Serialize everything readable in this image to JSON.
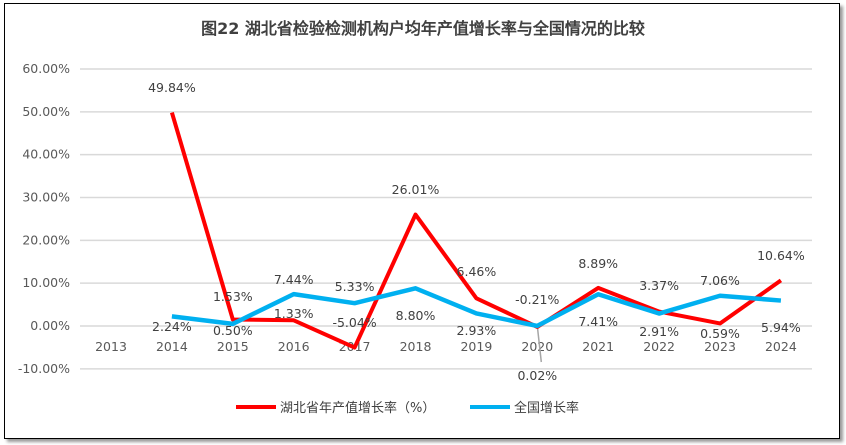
{
  "chart_data": {
    "type": "line",
    "title": "图22  湖北省检验检测机构户均年产值增长率与全国情况的比较",
    "categories": [
      "2013",
      "2014",
      "2015",
      "2016",
      "2017",
      "2018",
      "2019",
      "2020",
      "2021",
      "2022",
      "2023",
      "2024"
    ],
    "y_ticks": [
      "-10.00%",
      "0.00%",
      "10.00%",
      "20.00%",
      "30.00%",
      "40.00%",
      "50.00%",
      "60.00%"
    ],
    "ylim": [
      -10,
      60
    ],
    "grid": true,
    "legend_position": "bottom",
    "series": [
      {
        "name": "湖北省年产值增长率（%）",
        "color": "#FF0000",
        "values": [
          null,
          49.84,
          1.53,
          1.33,
          -5.04,
          26.01,
          6.46,
          -0.21,
          8.89,
          3.37,
          0.59,
          10.64
        ],
        "labels": [
          "",
          "49.84%",
          "1.53%",
          "1.33%",
          "-5.04%",
          "26.01%",
          "6.46%",
          "-0.21%",
          "8.89%",
          "3.37%",
          "0.59%",
          "10.64%"
        ]
      },
      {
        "name": "全国增长率",
        "color": "#00B0F0",
        "values": [
          null,
          2.24,
          0.5,
          7.44,
          5.33,
          8.8,
          2.93,
          0.02,
          7.41,
          2.91,
          7.06,
          5.94
        ],
        "labels": [
          "",
          "2.24%",
          "0.50%",
          "7.44%",
          "5.33%",
          "8.80%",
          "2.93%",
          "0.02%",
          "7.41%",
          "2.91%",
          "7.06%",
          "5.94%"
        ]
      }
    ]
  }
}
